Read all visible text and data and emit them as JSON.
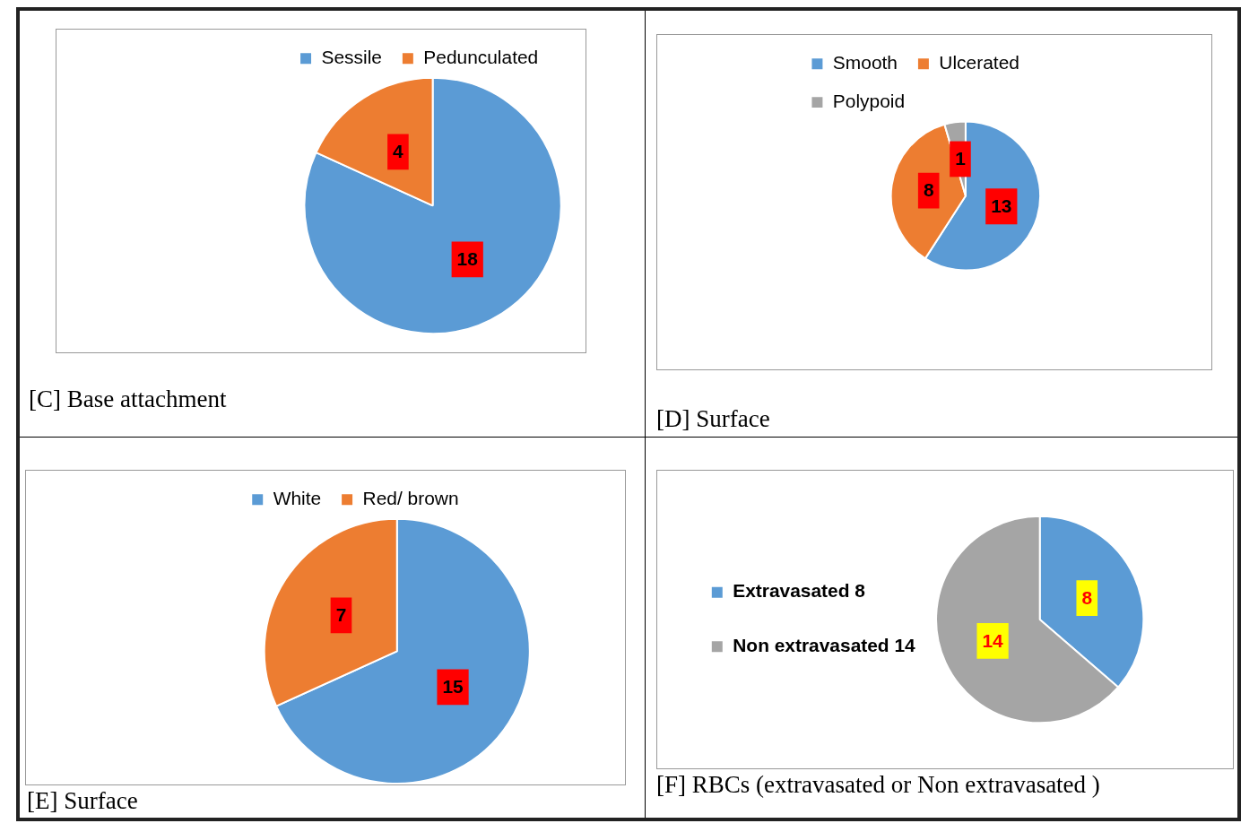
{
  "chart_data": [
    {
      "type": "pie",
      "title": "[C] Base attachment",
      "categories": [
        "Sessile",
        "Pedunculated"
      ],
      "values": [
        18,
        4
      ],
      "colors": [
        "#5b9bd5",
        "#ed7d31"
      ],
      "data_labels": true,
      "legend": "top"
    },
    {
      "type": "pie",
      "title": "[D] Surface",
      "categories": [
        "Smooth",
        "Ulcerated",
        "Polypoid"
      ],
      "values": [
        13,
        8,
        1
      ],
      "colors": [
        "#5b9bd5",
        "#ed7d31",
        "#a5a5a5"
      ],
      "data_labels": true,
      "legend": "top"
    },
    {
      "type": "pie",
      "title": "[E] Surface",
      "categories": [
        "White",
        "Red/ brown"
      ],
      "values": [
        15,
        7
      ],
      "colors": [
        "#5b9bd5",
        "#ed7d31"
      ],
      "data_labels": true,
      "legend": "top"
    },
    {
      "type": "pie",
      "title": "[F]  RBCs (extravasated or Non extravasated )",
      "categories": [
        "Extravasated 8",
        "Non extravasated 14"
      ],
      "values": [
        8,
        14
      ],
      "colors": [
        "#5b9bd5",
        "#a5a5a5"
      ],
      "data_labels": true,
      "legend": "left"
    }
  ]
}
